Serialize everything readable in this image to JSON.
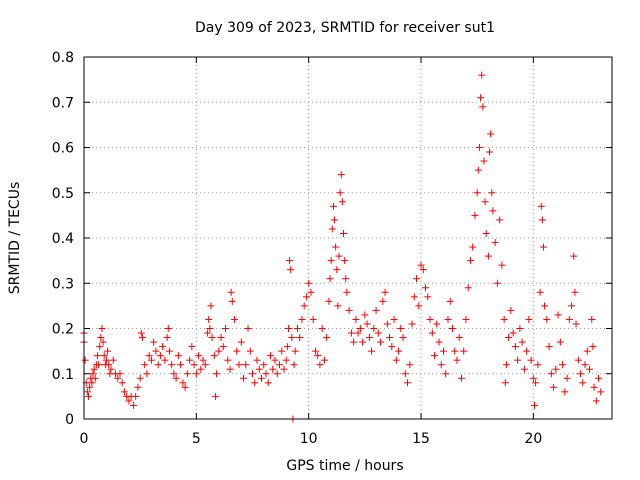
{
  "chart_data": {
    "type": "scatter",
    "title": "Day 309 of 2023, SRMTID for receiver sut1",
    "xlabel": "GPS time / hours",
    "ylabel": "SRMTID / TECUs",
    "xlim": [
      0,
      23.5
    ],
    "ylim": [
      0,
      0.8
    ],
    "xticks": [
      0,
      5,
      10,
      15,
      20
    ],
    "yticks": [
      0,
      0.1,
      0.2,
      0.3,
      0.4,
      0.5,
      0.6,
      0.7,
      0.8
    ],
    "xtick_labels": [
      "0",
      "5",
      "10",
      "15",
      "20"
    ],
    "ytick_labels": [
      "0",
      "0.1",
      "0.2",
      "0.3",
      "0.4",
      "0.5",
      "0.6",
      "0.7",
      "0.8"
    ],
    "grid": true,
    "marker": "+",
    "color": "#ff0000",
    "series": [
      {
        "name": "sut1",
        "points": [
          [
            0.0,
            0.19
          ],
          [
            0.0,
            0.17
          ],
          [
            0.05,
            0.13
          ],
          [
            0.1,
            0.08
          ],
          [
            0.15,
            0.06
          ],
          [
            0.2,
            0.05
          ],
          [
            0.25,
            0.07
          ],
          [
            0.3,
            0.09
          ],
          [
            0.35,
            0.08
          ],
          [
            0.4,
            0.1
          ],
          [
            0.45,
            0.11
          ],
          [
            0.5,
            0.09
          ],
          [
            0.55,
            0.12
          ],
          [
            0.6,
            0.14
          ],
          [
            0.65,
            0.12
          ],
          [
            0.7,
            0.16
          ],
          [
            0.75,
            0.18
          ],
          [
            0.8,
            0.2
          ],
          [
            0.85,
            0.17
          ],
          [
            0.9,
            0.14
          ],
          [
            0.95,
            0.12
          ],
          [
            1.0,
            0.13
          ],
          [
            1.05,
            0.15
          ],
          [
            1.1,
            0.12
          ],
          [
            1.15,
            0.1
          ],
          [
            1.2,
            0.11
          ],
          [
            1.3,
            0.13
          ],
          [
            1.4,
            0.1
          ],
          [
            1.5,
            0.09
          ],
          [
            1.6,
            0.1
          ],
          [
            1.7,
            0.08
          ],
          [
            1.8,
            0.06
          ],
          [
            1.9,
            0.05
          ],
          [
            2.0,
            0.04
          ],
          [
            2.1,
            0.05
          ],
          [
            2.2,
            0.03
          ],
          [
            2.3,
            0.05
          ],
          [
            2.4,
            0.07
          ],
          [
            2.5,
            0.09
          ],
          [
            2.55,
            0.19
          ],
          [
            2.6,
            0.18
          ],
          [
            2.7,
            0.12
          ],
          [
            2.8,
            0.1
          ],
          [
            2.9,
            0.14
          ],
          [
            3.0,
            0.13
          ],
          [
            3.1,
            0.17
          ],
          [
            3.2,
            0.15
          ],
          [
            3.3,
            0.12
          ],
          [
            3.4,
            0.14
          ],
          [
            3.5,
            0.16
          ],
          [
            3.6,
            0.13
          ],
          [
            3.7,
            0.18
          ],
          [
            3.75,
            0.2
          ],
          [
            3.8,
            0.15
          ],
          [
            3.9,
            0.12
          ],
          [
            4.0,
            0.1
          ],
          [
            4.1,
            0.09
          ],
          [
            4.2,
            0.14
          ],
          [
            4.3,
            0.12
          ],
          [
            4.4,
            0.08
          ],
          [
            4.5,
            0.07
          ],
          [
            4.6,
            0.1
          ],
          [
            4.7,
            0.13
          ],
          [
            4.8,
            0.16
          ],
          [
            4.9,
            0.12
          ],
          [
            5.0,
            0.1
          ],
          [
            5.1,
            0.14
          ],
          [
            5.2,
            0.11
          ],
          [
            5.3,
            0.13
          ],
          [
            5.4,
            0.12
          ],
          [
            5.5,
            0.19
          ],
          [
            5.55,
            0.22
          ],
          [
            5.6,
            0.2
          ],
          [
            5.65,
            0.25
          ],
          [
            5.7,
            0.18
          ],
          [
            5.8,
            0.14
          ],
          [
            5.85,
            0.05
          ],
          [
            5.9,
            0.1
          ],
          [
            6.0,
            0.15
          ],
          [
            6.1,
            0.18
          ],
          [
            6.2,
            0.16
          ],
          [
            6.3,
            0.2
          ],
          [
            6.4,
            0.13
          ],
          [
            6.5,
            0.11
          ],
          [
            6.55,
            0.28
          ],
          [
            6.6,
            0.26
          ],
          [
            6.7,
            0.22
          ],
          [
            6.8,
            0.15
          ],
          [
            6.9,
            0.12
          ],
          [
            7.0,
            0.17
          ],
          [
            7.1,
            0.09
          ],
          [
            7.2,
            0.12
          ],
          [
            7.3,
            0.2
          ],
          [
            7.4,
            0.15
          ],
          [
            7.5,
            0.1
          ],
          [
            7.6,
            0.08
          ],
          [
            7.7,
            0.13
          ],
          [
            7.8,
            0.11
          ],
          [
            7.9,
            0.09
          ],
          [
            8.0,
            0.12
          ],
          [
            8.1,
            0.1
          ],
          [
            8.2,
            0.08
          ],
          [
            8.3,
            0.14
          ],
          [
            8.4,
            0.11
          ],
          [
            8.5,
            0.13
          ],
          [
            8.6,
            0.1
          ],
          [
            8.7,
            0.12
          ],
          [
            8.8,
            0.15
          ],
          [
            8.9,
            0.11
          ],
          [
            9.0,
            0.13
          ],
          [
            9.05,
            0.16
          ],
          [
            9.1,
            0.2
          ],
          [
            9.15,
            0.35
          ],
          [
            9.2,
            0.33
          ],
          [
            9.25,
            0.18
          ],
          [
            9.3,
            0.0
          ],
          [
            9.35,
            0.12
          ],
          [
            9.4,
            0.15
          ],
          [
            9.5,
            0.2
          ],
          [
            9.6,
            0.18
          ],
          [
            9.7,
            0.22
          ],
          [
            9.8,
            0.25
          ],
          [
            9.9,
            0.27
          ],
          [
            10.0,
            0.3
          ],
          [
            10.1,
            0.28
          ],
          [
            10.2,
            0.22
          ],
          [
            10.3,
            0.15
          ],
          [
            10.4,
            0.14
          ],
          [
            10.5,
            0.12
          ],
          [
            10.6,
            0.2
          ],
          [
            10.7,
            0.13
          ],
          [
            10.8,
            0.18
          ],
          [
            10.9,
            0.26
          ],
          [
            10.95,
            0.31
          ],
          [
            11.0,
            0.35
          ],
          [
            11.05,
            0.42
          ],
          [
            11.1,
            0.47
          ],
          [
            11.15,
            0.44
          ],
          [
            11.2,
            0.38
          ],
          [
            11.25,
            0.33
          ],
          [
            11.3,
            0.25
          ],
          [
            11.35,
            0.36
          ],
          [
            11.4,
            0.5
          ],
          [
            11.45,
            0.54
          ],
          [
            11.5,
            0.48
          ],
          [
            11.55,
            0.41
          ],
          [
            11.6,
            0.35
          ],
          [
            11.65,
            0.31
          ],
          [
            11.7,
            0.28
          ],
          [
            11.8,
            0.24
          ],
          [
            11.9,
            0.19
          ],
          [
            12.0,
            0.17
          ],
          [
            12.1,
            0.22
          ],
          [
            12.2,
            0.19
          ],
          [
            12.3,
            0.2
          ],
          [
            12.4,
            0.17
          ],
          [
            12.5,
            0.23
          ],
          [
            12.6,
            0.21
          ],
          [
            12.7,
            0.18
          ],
          [
            12.8,
            0.15
          ],
          [
            12.9,
            0.2
          ],
          [
            13.0,
            0.24
          ],
          [
            13.1,
            0.19
          ],
          [
            13.2,
            0.17
          ],
          [
            13.3,
            0.26
          ],
          [
            13.4,
            0.28
          ],
          [
            13.5,
            0.21
          ],
          [
            13.6,
            0.18
          ],
          [
            13.7,
            0.16
          ],
          [
            13.8,
            0.22
          ],
          [
            13.9,
            0.13
          ],
          [
            14.0,
            0.15
          ],
          [
            14.1,
            0.2
          ],
          [
            14.2,
            0.18
          ],
          [
            14.3,
            0.1
          ],
          [
            14.4,
            0.08
          ],
          [
            14.5,
            0.12
          ],
          [
            14.6,
            0.21
          ],
          [
            14.7,
            0.27
          ],
          [
            14.8,
            0.31
          ],
          [
            14.9,
            0.25
          ],
          [
            15.0,
            0.34
          ],
          [
            15.1,
            0.33
          ],
          [
            15.2,
            0.29
          ],
          [
            15.3,
            0.27
          ],
          [
            15.4,
            0.22
          ],
          [
            15.5,
            0.19
          ],
          [
            15.6,
            0.14
          ],
          [
            15.7,
            0.21
          ],
          [
            15.8,
            0.17
          ],
          [
            15.9,
            0.12
          ],
          [
            16.0,
            0.15
          ],
          [
            16.1,
            0.1
          ],
          [
            16.2,
            0.22
          ],
          [
            16.3,
            0.26
          ],
          [
            16.4,
            0.2
          ],
          [
            16.5,
            0.15
          ],
          [
            16.6,
            0.13
          ],
          [
            16.7,
            0.18
          ],
          [
            16.8,
            0.09
          ],
          [
            16.9,
            0.15
          ],
          [
            17.0,
            0.22
          ],
          [
            17.1,
            0.29
          ],
          [
            17.2,
            0.35
          ],
          [
            17.3,
            0.38
          ],
          [
            17.4,
            0.45
          ],
          [
            17.5,
            0.5
          ],
          [
            17.55,
            0.55
          ],
          [
            17.6,
            0.6
          ],
          [
            17.65,
            0.71
          ],
          [
            17.7,
            0.76
          ],
          [
            17.75,
            0.69
          ],
          [
            17.8,
            0.57
          ],
          [
            17.85,
            0.48
          ],
          [
            17.9,
            0.41
          ],
          [
            18.0,
            0.36
          ],
          [
            18.05,
            0.59
          ],
          [
            18.1,
            0.63
          ],
          [
            18.15,
            0.5
          ],
          [
            18.2,
            0.46
          ],
          [
            18.3,
            0.39
          ],
          [
            18.4,
            0.3
          ],
          [
            18.5,
            0.44
          ],
          [
            18.6,
            0.34
          ],
          [
            18.7,
            0.22
          ],
          [
            18.75,
            0.08
          ],
          [
            18.8,
            0.12
          ],
          [
            18.9,
            0.18
          ],
          [
            19.0,
            0.24
          ],
          [
            19.1,
            0.19
          ],
          [
            19.2,
            0.16
          ],
          [
            19.3,
            0.13
          ],
          [
            19.4,
            0.2
          ],
          [
            19.5,
            0.17
          ],
          [
            19.6,
            0.11
          ],
          [
            19.7,
            0.15
          ],
          [
            19.8,
            0.22
          ],
          [
            19.9,
            0.13
          ],
          [
            20.0,
            0.09
          ],
          [
            20.05,
            0.03
          ],
          [
            20.1,
            0.08
          ],
          [
            20.2,
            0.12
          ],
          [
            20.3,
            0.28
          ],
          [
            20.35,
            0.47
          ],
          [
            20.4,
            0.44
          ],
          [
            20.45,
            0.38
          ],
          [
            20.5,
            0.25
          ],
          [
            20.6,
            0.22
          ],
          [
            20.7,
            0.16
          ],
          [
            20.8,
            0.1
          ],
          [
            20.9,
            0.07
          ],
          [
            21.0,
            0.11
          ],
          [
            21.1,
            0.23
          ],
          [
            21.2,
            0.17
          ],
          [
            21.3,
            0.12
          ],
          [
            21.4,
            0.06
          ],
          [
            21.5,
            0.09
          ],
          [
            21.6,
            0.22
          ],
          [
            21.7,
            0.25
          ],
          [
            21.8,
            0.36
          ],
          [
            21.85,
            0.28
          ],
          [
            21.9,
            0.21
          ],
          [
            22.0,
            0.13
          ],
          [
            22.1,
            0.1
          ],
          [
            22.2,
            0.08
          ],
          [
            22.3,
            0.12
          ],
          [
            22.4,
            0.15
          ],
          [
            22.5,
            0.11
          ],
          [
            22.6,
            0.22
          ],
          [
            22.65,
            0.16
          ],
          [
            22.7,
            0.07
          ],
          [
            22.8,
            0.04
          ],
          [
            22.9,
            0.09
          ],
          [
            23.0,
            0.06
          ]
        ]
      }
    ]
  }
}
